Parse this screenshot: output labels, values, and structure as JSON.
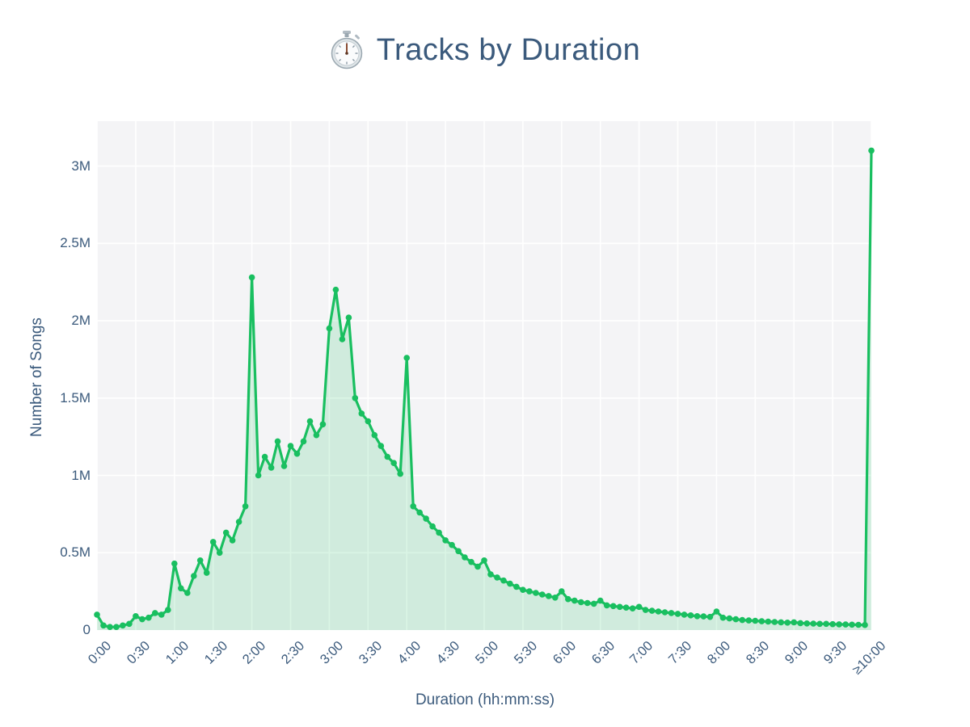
{
  "title": {
    "icon": "stopwatch-icon",
    "text": "Tracks by Duration"
  },
  "colors": {
    "background": "#ffffff",
    "plot_background": "#f4f4f6",
    "gridline": "#ffffff",
    "line": "#19bf60",
    "fill": "rgba(25,191,96,0.16)",
    "text": "#3b5a7c"
  },
  "chart_data": {
    "type": "area",
    "title": "Tracks by Duration",
    "xlabel": "Duration (hh:mm:ss)",
    "ylabel": "Number of Songs",
    "grid": true,
    "legend": "none",
    "x_tick_labels": [
      "0:00",
      "0:30",
      "1:00",
      "1:30",
      "2:00",
      "2:30",
      "3:00",
      "3:30",
      "4:00",
      "4:30",
      "5:00",
      "5:30",
      "6:00",
      "6:30",
      "7:00",
      "7:30",
      "8:00",
      "8:30",
      "9:00",
      "9:30",
      "≥10:00"
    ],
    "x_tick_seconds": [
      0,
      30,
      60,
      90,
      120,
      150,
      180,
      210,
      240,
      270,
      300,
      330,
      360,
      390,
      420,
      450,
      480,
      510,
      540,
      570,
      600
    ],
    "y_tick_labels": [
      "0",
      "0.5M",
      "1M",
      "1.5M",
      "2M",
      "2.5M",
      "3M"
    ],
    "y_tick_values_millions": [
      0,
      0.5,
      1,
      1.5,
      2,
      2.5,
      3
    ],
    "xlim_seconds": [
      0,
      600
    ],
    "ylim_millions": [
      0,
      3.29
    ],
    "bin_width_seconds": 5,
    "x_seconds": [
      0,
      5,
      10,
      15,
      20,
      25,
      30,
      35,
      40,
      45,
      50,
      55,
      60,
      65,
      70,
      75,
      80,
      85,
      90,
      95,
      100,
      105,
      110,
      115,
      120,
      125,
      130,
      135,
      140,
      145,
      150,
      155,
      160,
      165,
      170,
      175,
      180,
      185,
      190,
      195,
      200,
      205,
      210,
      215,
      220,
      225,
      230,
      235,
      240,
      245,
      250,
      255,
      260,
      265,
      270,
      275,
      280,
      285,
      290,
      295,
      300,
      305,
      310,
      315,
      320,
      325,
      330,
      335,
      340,
      345,
      350,
      355,
      360,
      365,
      370,
      375,
      380,
      385,
      390,
      395,
      400,
      405,
      410,
      415,
      420,
      425,
      430,
      435,
      440,
      445,
      450,
      455,
      460,
      465,
      470,
      475,
      480,
      485,
      490,
      495,
      500,
      505,
      510,
      515,
      520,
      525,
      530,
      535,
      540,
      545,
      550,
      555,
      560,
      565,
      570,
      575,
      580,
      585,
      590,
      595,
      600
    ],
    "values_millions": [
      0.1,
      0.03,
      0.02,
      0.02,
      0.03,
      0.04,
      0.09,
      0.07,
      0.08,
      0.11,
      0.1,
      0.13,
      0.43,
      0.27,
      0.24,
      0.35,
      0.45,
      0.37,
      0.57,
      0.5,
      0.63,
      0.58,
      0.7,
      0.8,
      2.28,
      1.0,
      1.12,
      1.05,
      1.22,
      1.06,
      1.19,
      1.14,
      1.22,
      1.35,
      1.26,
      1.33,
      1.95,
      2.2,
      1.88,
      2.02,
      1.5,
      1.4,
      1.35,
      1.26,
      1.19,
      1.12,
      1.08,
      1.01,
      1.76,
      0.8,
      0.76,
      0.72,
      0.67,
      0.63,
      0.58,
      0.55,
      0.51,
      0.47,
      0.44,
      0.41,
      0.45,
      0.36,
      0.34,
      0.32,
      0.3,
      0.28,
      0.26,
      0.25,
      0.24,
      0.23,
      0.22,
      0.21,
      0.25,
      0.2,
      0.19,
      0.18,
      0.175,
      0.17,
      0.19,
      0.16,
      0.155,
      0.15,
      0.145,
      0.14,
      0.15,
      0.13,
      0.125,
      0.12,
      0.115,
      0.11,
      0.105,
      0.1,
      0.095,
      0.09,
      0.088,
      0.085,
      0.12,
      0.08,
      0.075,
      0.07,
      0.065,
      0.062,
      0.06,
      0.057,
      0.055,
      0.052,
      0.05,
      0.048,
      0.05,
      0.045,
      0.043,
      0.042,
      0.04,
      0.04,
      0.038,
      0.037,
      0.036,
      0.035,
      0.034,
      0.033,
      3.1
    ]
  }
}
